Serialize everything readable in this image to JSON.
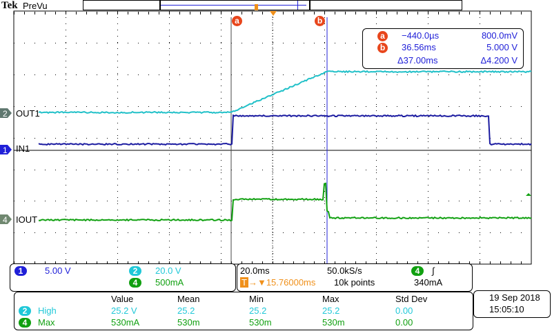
{
  "header": {
    "brand": "Tek",
    "mode": "PreVu"
  },
  "colors": {
    "ch1": "#1a1aa0",
    "ch2": "#20c0c8",
    "ch4": "#10a010",
    "cursor": "#e8461c",
    "trigger": "#f0901a"
  },
  "channels": [
    {
      "num": "1",
      "label": "IN1"
    },
    {
      "num": "2",
      "label": "OUT1"
    },
    {
      "num": "4",
      "label": "IOUT"
    }
  ],
  "cursors": {
    "a_label": "a",
    "b_label": "b",
    "a_time": "−440.0µs",
    "a_value": "800.0mV",
    "b_time": "36.56ms",
    "b_value": "5.000 V",
    "delta_time": "Δ37.00ms",
    "delta_value": "Δ4.200 V"
  },
  "vertical": {
    "ch1_scale": "5.00 V",
    "ch2_scale": "20.0 V",
    "ch4_scale": "500mA"
  },
  "horizontal": {
    "timebase": "20.0ms",
    "sample_rate": "50.0kS/s",
    "trigger_pos": "15.76000ms",
    "record": "10k points",
    "trigger_ch": "4",
    "trigger_slope": "∫",
    "trigger_level": "340mA"
  },
  "measurements": {
    "headers": [
      "Value",
      "Mean",
      "Min",
      "Max",
      "Std Dev"
    ],
    "rows": [
      {
        "ch": "2",
        "name": "High",
        "cells": [
          "25.2 V",
          "25.2",
          "25.2",
          "25.2",
          "0.00"
        ]
      },
      {
        "ch": "4",
        "name": "Max",
        "cells": [
          "530mA",
          "530m",
          "530m",
          "530m",
          "0.00"
        ]
      }
    ]
  },
  "datetime": {
    "date": "19 Sep  2018",
    "time": "15:05:10"
  }
}
